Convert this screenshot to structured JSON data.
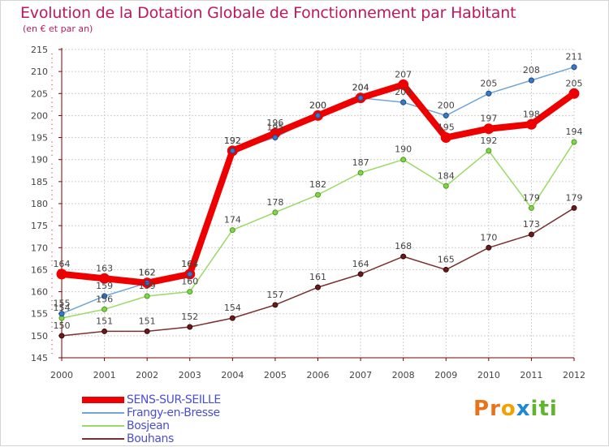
{
  "title": "Evolution de la Dotation Globale de Fonctionnement par Habitant",
  "subtitle": "(en € et par an)",
  "logo": {
    "letters": [
      "P",
      "r",
      "o",
      "x",
      "i",
      "t",
      "i"
    ],
    "colors": [
      "#e8731a",
      "#e8731a",
      "#f2a200",
      "#1e88d0",
      "#62b32e",
      "#62b32e",
      "#62b32e"
    ]
  },
  "colors": {
    "title": "#c0185c",
    "axis": "#7a0000",
    "grid": "#cfcfcf",
    "label": "#444444"
  },
  "chart_data": {
    "type": "line",
    "title": "Evolution de la Dotation Globale de Fonctionnement par Habitant",
    "subtitle": "(en € et par an)",
    "xlabel": "",
    "ylabel": "",
    "x": [
      2000,
      2001,
      2002,
      2003,
      2004,
      2005,
      2006,
      2007,
      2008,
      2009,
      2010,
      2011,
      2012
    ],
    "ylim": [
      145,
      215
    ],
    "yticks": [
      145,
      150,
      155,
      160,
      165,
      170,
      175,
      180,
      185,
      190,
      195,
      200,
      205,
      210,
      215
    ],
    "grid": true,
    "legend_position": "bottom-left",
    "series": [
      {
        "name": "SENS-SUR-SEILLE",
        "color": "#ee0000",
        "values": [
          164,
          163,
          162,
          164,
          192,
          196,
          200,
          204,
          207,
          195,
          197,
          198,
          205
        ],
        "labels": [
          "164",
          "163",
          "162",
          "164",
          "192",
          "196",
          "200",
          "204",
          "207",
          "195",
          "197",
          "198",
          "205"
        ]
      },
      {
        "name": "Frangy-en-Bresse",
        "color": "#6fa6d6",
        "values": [
          155,
          159,
          162,
          164,
          192,
          195,
          200,
          204,
          203,
          200,
          205,
          208,
          211
        ],
        "labels": [
          "155",
          "159",
          "162",
          "164",
          "192",
          "195",
          "200",
          "204",
          "203",
          "200",
          "205",
          "208",
          "211"
        ]
      },
      {
        "name": "Bosjean",
        "color": "#9ad964",
        "values": [
          154,
          156,
          159,
          160,
          174,
          178,
          182,
          187,
          190,
          184,
          192,
          179,
          194
        ],
        "labels": [
          "154",
          "156",
          "159",
          "160",
          "174",
          "178",
          "182",
          "187",
          "190",
          "184",
          "192",
          "179",
          "194"
        ]
      },
      {
        "name": "Bouhans",
        "color": "#7a3030",
        "values": [
          150,
          151,
          151,
          152,
          154,
          157,
          161,
          164,
          168,
          165,
          170,
          173,
          179
        ],
        "labels": [
          "150",
          "151",
          "151",
          "152",
          "154",
          "157",
          "161",
          "164",
          "168",
          "165",
          "170",
          "173",
          "179"
        ]
      }
    ]
  }
}
